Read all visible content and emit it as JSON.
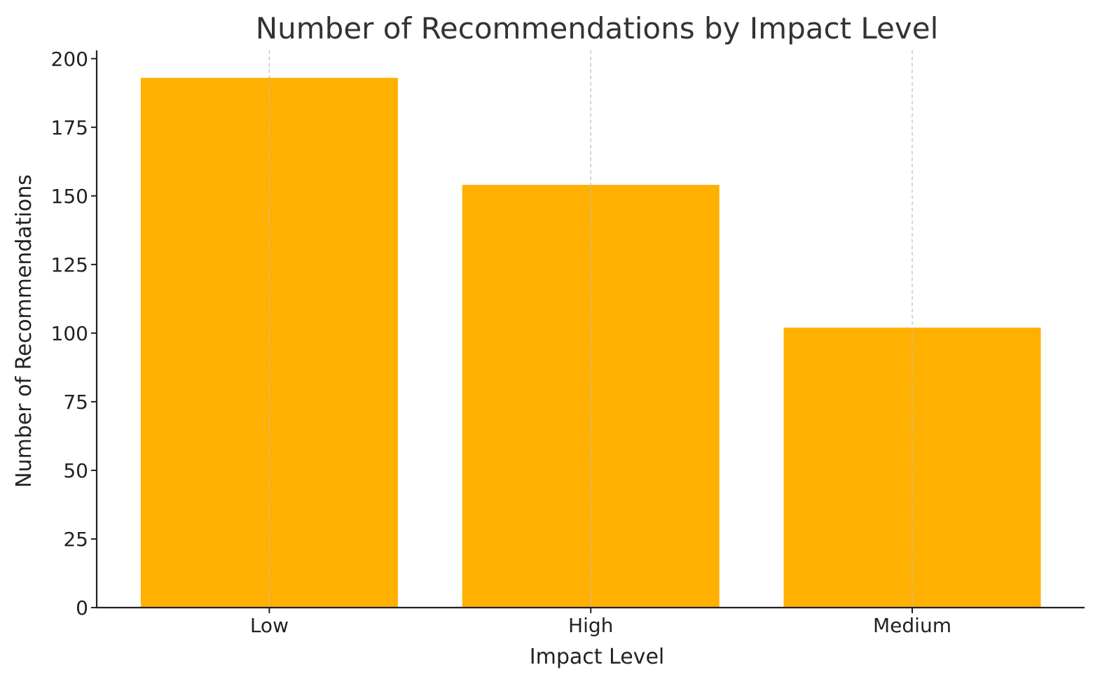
{
  "chart_data": {
    "type": "bar",
    "title": "Number of Recommendations by Impact Level",
    "xlabel": "Impact Level",
    "ylabel": "Number of Recommendations",
    "categories": [
      "Low",
      "High",
      "Medium"
    ],
    "values": [
      193,
      154,
      102
    ],
    "ylim": [
      0,
      203
    ],
    "yticks": [
      0,
      25,
      50,
      75,
      100,
      125,
      150,
      175,
      200
    ],
    "grid": "x-axis dashed",
    "bar_color": "#FFB000",
    "grid_color": "#BFBFBF",
    "axis_color": "#222222",
    "title_color": "#333333"
  }
}
